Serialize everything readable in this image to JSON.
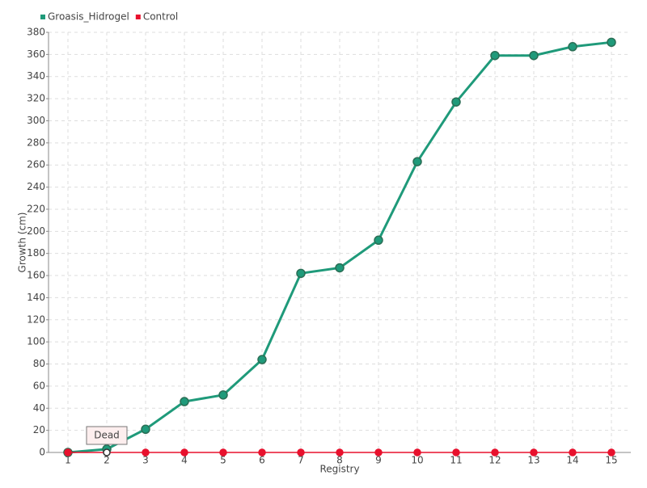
{
  "chart_data": {
    "type": "line",
    "x_label": "Registry",
    "y_label": "Growth (cm)",
    "categories": [
      "1",
      "2",
      "3",
      "4",
      "5",
      "6",
      "7",
      "8",
      "9",
      "10",
      "11",
      "12",
      "13",
      "14",
      "15"
    ],
    "series": [
      {
        "name": "Groasis_Hidrogel",
        "color": "#1f9a7a",
        "values": [
          0,
          3,
          21,
          46,
          52,
          84,
          162,
          167,
          192,
          263,
          317,
          359,
          359,
          367,
          371
        ]
      },
      {
        "name": "Control",
        "color": "#e8112d",
        "values": [
          0,
          0,
          0,
          0,
          0,
          0,
          0,
          0,
          0,
          0,
          0,
          0,
          0,
          0,
          0
        ]
      }
    ],
    "annotations": [
      {
        "x": "2",
        "series": "Control",
        "text": "Dead"
      }
    ],
    "ylim": [
      0,
      380
    ],
    "yticks": [
      0,
      20,
      40,
      60,
      80,
      100,
      120,
      140,
      160,
      180,
      200,
      220,
      240,
      260,
      280,
      300,
      320,
      340,
      360,
      380
    ],
    "grid": true,
    "legend": "top-left"
  }
}
